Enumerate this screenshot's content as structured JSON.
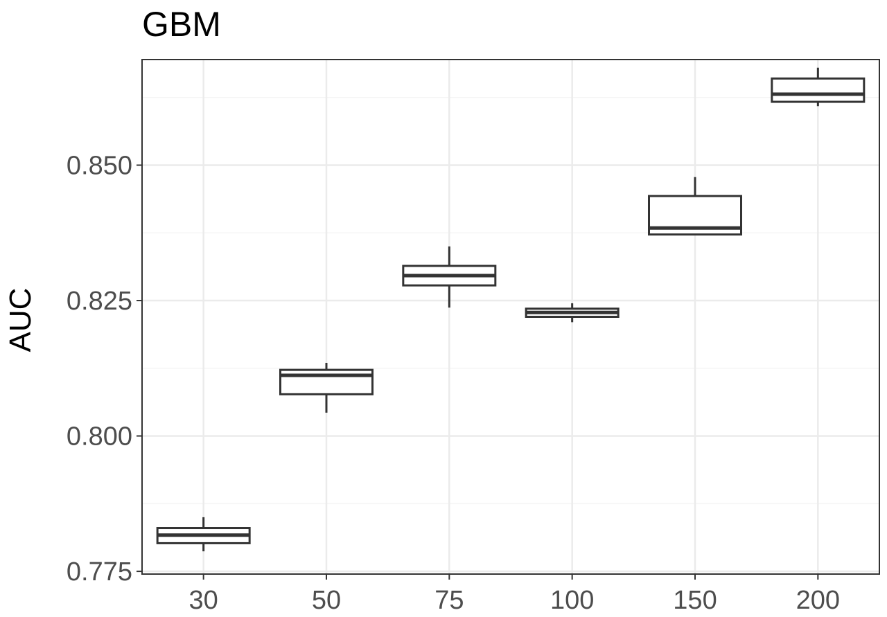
{
  "chart_data": {
    "type": "boxplot",
    "title": "GBM",
    "xlabel": "",
    "ylabel": "AUC",
    "ylim": [
      0.7745,
      0.8695
    ],
    "yticks": [
      0.775,
      0.8,
      0.825,
      0.85
    ],
    "ytick_labels": [
      "0.775",
      "0.800",
      "0.825",
      "0.850"
    ],
    "grid": true,
    "legend": "none",
    "colors": {
      "box_fill": "#ffffff",
      "box_stroke": "#333333",
      "grid_major": "#ebebeb",
      "grid_minor": "#f4f4f4",
      "panel_border": "#333333"
    },
    "categories": [
      "30",
      "50",
      "75",
      "100",
      "150",
      "200"
    ],
    "boxes": [
      {
        "category": "30",
        "min": 0.7787,
        "q1": 0.7802,
        "median": 0.7817,
        "q3": 0.783,
        "max": 0.785
      },
      {
        "category": "50",
        "min": 0.8043,
        "q1": 0.8077,
        "median": 0.8112,
        "q3": 0.8122,
        "max": 0.8135
      },
      {
        "category": "75",
        "min": 0.8237,
        "q1": 0.8278,
        "median": 0.8296,
        "q3": 0.8314,
        "max": 0.835
      },
      {
        "category": "100",
        "min": 0.821,
        "q1": 0.822,
        "median": 0.8228,
        "q3": 0.8235,
        "max": 0.8245
      },
      {
        "category": "150",
        "min": 0.8372,
        "q1": 0.8372,
        "median": 0.8384,
        "q3": 0.8443,
        "max": 0.8478
      },
      {
        "category": "200",
        "min": 0.8609,
        "q1": 0.8617,
        "median": 0.8631,
        "q3": 0.866,
        "max": 0.868
      }
    ]
  }
}
